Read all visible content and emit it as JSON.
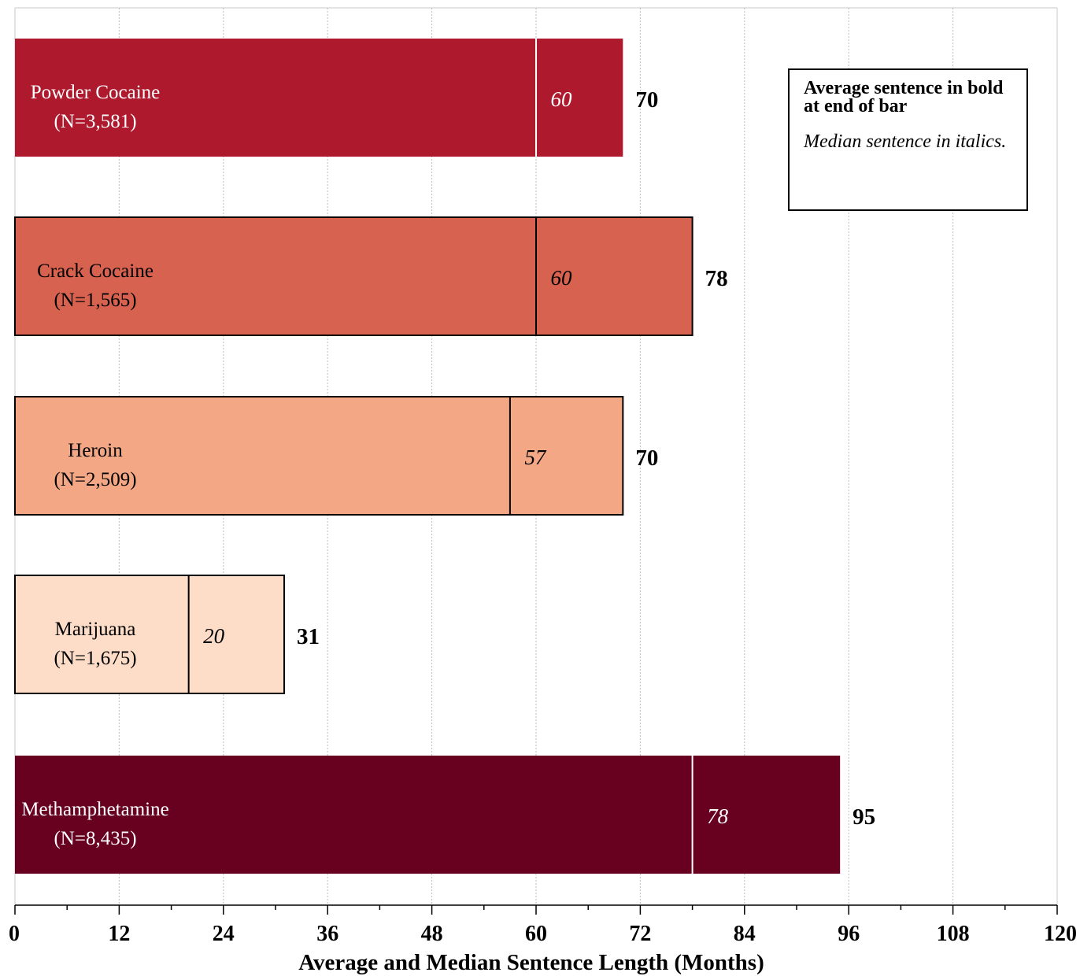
{
  "chart_data": {
    "type": "bar",
    "orientation": "horizontal",
    "xlabel": "Average and Median Sentence Length (Months)",
    "xlim": [
      0,
      120
    ],
    "x_ticks": [
      "0",
      "12",
      "24",
      "36",
      "48",
      "60",
      "72",
      "84",
      "96",
      "108",
      "120"
    ],
    "grid": "vertical dotted",
    "categories": [
      {
        "name": "Powder Cocaine",
        "n": "(N=3,581)",
        "average": 70,
        "median": 60,
        "average_label": "70",
        "median_label": "60",
        "color": "#AE192D",
        "text_color": "#ffffff",
        "divider_color": "#ffffff",
        "outline": false
      },
      {
        "name": "Crack Cocaine",
        "n": "(N=1,565)",
        "average": 78,
        "median": 60,
        "average_label": "78",
        "median_label": "60",
        "color": "#D76250",
        "text_color": "#000000",
        "divider_color": "#000000",
        "outline": true
      },
      {
        "name": "Heroin",
        "n": "(N=2,509)",
        "average": 70,
        "median": 57,
        "average_label": "70",
        "median_label": "57",
        "color": "#F3A784",
        "text_color": "#000000",
        "divider_color": "#000000",
        "outline": true
      },
      {
        "name": "Marijuana",
        "n": "(N=1,675)",
        "average": 31,
        "median": 20,
        "average_label": "31",
        "median_label": "20",
        "color": "#FDDCC8",
        "text_color": "#000000",
        "divider_color": "#000000",
        "outline": true
      },
      {
        "name": "Methamphetamine",
        "n": "(N=8,435)",
        "average": 95,
        "median": 78,
        "average_label": "95",
        "median_label": "78",
        "color": "#680020",
        "text_color": "#ffffff",
        "divider_color": "#ffffff",
        "outline": false
      }
    ],
    "annotation": {
      "bold_text": "Average sentence in bold at end of bar",
      "italic_text": "Median sentence in italics.",
      "placement": "top-right"
    }
  }
}
